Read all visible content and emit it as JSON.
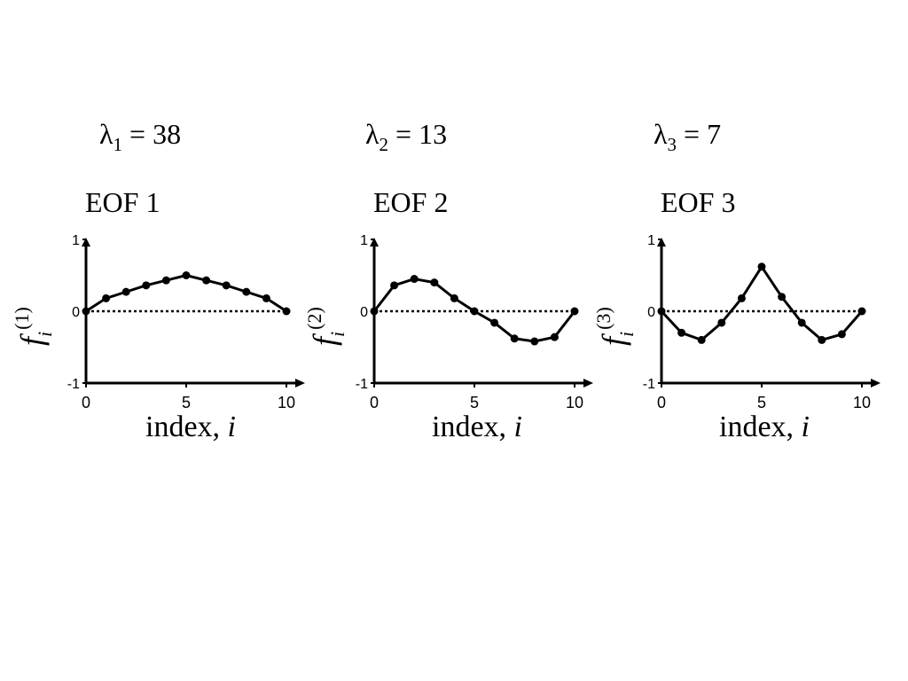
{
  "chart_data": [
    {
      "type": "line",
      "eigenvalue": {
        "symbol": "λ",
        "subscript": "1",
        "text": " = 38",
        "value": 38
      },
      "title": "EOF 1",
      "xlabel": "index, ",
      "xlabel_italic": "i",
      "ylabel": "f",
      "ylabel_sub": "i",
      "ylabel_sup": "(1)",
      "xlim": [
        0,
        10
      ],
      "ylim": [
        -1,
        1
      ],
      "xticks": [
        {
          "v": 0,
          "label": "0"
        },
        {
          "v": 5,
          "label": "5"
        },
        {
          "v": 10,
          "label": "10"
        }
      ],
      "yticks": [
        {
          "v": -1,
          "label": "-1"
        },
        {
          "v": 0,
          "label": "0"
        },
        {
          "v": 1,
          "label": "1"
        }
      ],
      "zero_line": "dotted",
      "x": [
        0,
        1,
        2,
        3,
        4,
        5,
        6,
        7,
        8,
        9,
        10
      ],
      "values": [
        0,
        0.18,
        0.27,
        0.36,
        0.43,
        0.5,
        0.43,
        0.36,
        0.27,
        0.18,
        0
      ]
    },
    {
      "type": "line",
      "eigenvalue": {
        "symbol": "λ",
        "subscript": "2",
        "text": " = 13",
        "value": 13
      },
      "title": "EOF 2",
      "xlabel": "index, ",
      "xlabel_italic": "i",
      "ylabel": "f",
      "ylabel_sub": "i",
      "ylabel_sup": "(2)",
      "xlim": [
        0,
        10
      ],
      "ylim": [
        -1,
        1
      ],
      "xticks": [
        {
          "v": 0,
          "label": "0"
        },
        {
          "v": 5,
          "label": "5"
        },
        {
          "v": 10,
          "label": "10"
        }
      ],
      "yticks": [
        {
          "v": -1,
          "label": "-1"
        },
        {
          "v": 0,
          "label": "0"
        },
        {
          "v": 1,
          "label": "1"
        }
      ],
      "zero_line": "dotted",
      "x": [
        0,
        1,
        2,
        3,
        4,
        5,
        6,
        7,
        8,
        9,
        10
      ],
      "values": [
        0,
        0.36,
        0.45,
        0.4,
        0.18,
        0,
        -0.16,
        -0.38,
        -0.42,
        -0.36,
        0
      ]
    },
    {
      "type": "line",
      "eigenvalue": {
        "symbol": "λ",
        "subscript": "3",
        "text": " = 7",
        "value": 7
      },
      "title": "EOF 3",
      "xlabel": "index, ",
      "xlabel_italic": "i",
      "ylabel": "f",
      "ylabel_sub": "i",
      "ylabel_sup": "(3)",
      "xlim": [
        0,
        10
      ],
      "ylim": [
        -1,
        1
      ],
      "xticks": [
        {
          "v": 0,
          "label": "0"
        },
        {
          "v": 5,
          "label": "5"
        },
        {
          "v": 10,
          "label": "10"
        }
      ],
      "yticks": [
        {
          "v": -1,
          "label": "-1"
        },
        {
          "v": 0,
          "label": "0"
        },
        {
          "v": 1,
          "label": "1"
        }
      ],
      "zero_line": "dotted",
      "x": [
        0,
        1,
        2,
        3,
        4,
        5,
        6,
        7,
        8,
        9,
        10
      ],
      "values": [
        0,
        -0.3,
        -0.4,
        -0.16,
        0.18,
        0.62,
        0.2,
        -0.16,
        -0.4,
        -0.32,
        0
      ]
    }
  ]
}
